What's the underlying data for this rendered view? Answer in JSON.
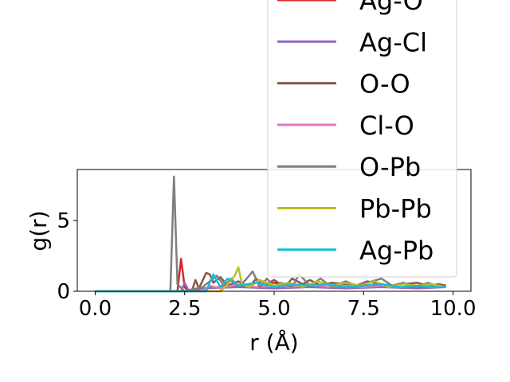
{
  "chart_data": {
    "type": "line",
    "xlabel": "r (Å)",
    "ylabel": "g(r)",
    "xlim": [
      -0.5,
      10.5
    ],
    "ylim": [
      0,
      8.6
    ],
    "xticks": [
      "0.0",
      "2.5",
      "5.0",
      "7.5",
      "10.0"
    ],
    "yticks": [
      "0",
      "5"
    ],
    "legend_position": "upper-right, extending above plot",
    "series": [
      {
        "name": "Ag-O",
        "color": "#d62728",
        "x": [
          0,
          2.3,
          2.4,
          2.5,
          2.6,
          3.0,
          3.5,
          4.0,
          4.5,
          5.0,
          5.5,
          6.0,
          6.5,
          7.0,
          7.5,
          8.0,
          8.5,
          9.0,
          9.5,
          9.8
        ],
        "y": [
          0,
          0,
          2.3,
          0.3,
          0.0,
          0.2,
          0.3,
          0.4,
          0.3,
          0.6,
          0.3,
          0.5,
          0.3,
          0.4,
          0.3,
          0.4,
          0.3,
          0.3,
          0.4,
          0.3
        ]
      },
      {
        "name": "Ag-Cl",
        "color": "#9467bd",
        "x": [
          0,
          2.4,
          2.5,
          2.6,
          3.0,
          4.0,
          5.0,
          6.0,
          7.0,
          8.0,
          9.0,
          9.8
        ],
        "y": [
          0,
          0,
          0.6,
          0.1,
          0.2,
          0.3,
          0.2,
          0.3,
          0.2,
          0.3,
          0.2,
          0.3
        ]
      },
      {
        "name": "O-O",
        "color": "#8c564b",
        "x": [
          0,
          2.7,
          2.8,
          2.9,
          3.1,
          3.2,
          3.3,
          3.5,
          3.7,
          4.0,
          4.3,
          4.5,
          4.7,
          5.0,
          5.3,
          5.5,
          5.8,
          6.0,
          6.3,
          6.6,
          7.0,
          7.3,
          7.6,
          8.0,
          8.3,
          8.6,
          9.0,
          9.3,
          9.6,
          9.8
        ],
        "y": [
          0,
          0,
          0.8,
          0.2,
          1.3,
          1.2,
          0.6,
          1.0,
          0.4,
          0.7,
          0.3,
          0.9,
          0.4,
          0.8,
          0.3,
          0.9,
          0.5,
          0.8,
          0.4,
          0.6,
          0.5,
          0.4,
          0.7,
          0.5,
          0.4,
          0.5,
          0.6,
          0.4,
          0.5,
          0.4
        ]
      },
      {
        "name": "Cl-O",
        "color": "#e377c2",
        "x": [
          0,
          3.0,
          3.2,
          3.5,
          4.0,
          4.5,
          5.0,
          5.5,
          6.0,
          6.5,
          7.0,
          7.5,
          8.0,
          8.5,
          9.0,
          9.5,
          9.8
        ],
        "y": [
          0,
          0,
          0.4,
          0.2,
          0.5,
          0.3,
          0.4,
          0.3,
          0.5,
          0.3,
          0.4,
          0.3,
          0.4,
          0.3,
          0.4,
          0.3,
          0.3
        ]
      },
      {
        "name": "O-Pb",
        "color": "#7f7f7f",
        "x": [
          0,
          2.1,
          2.2,
          2.3,
          2.5,
          3.0,
          3.4,
          3.6,
          3.8,
          4.0,
          4.2,
          4.4,
          4.6,
          4.8,
          5.0,
          5.2,
          5.5,
          5.7,
          6.0,
          6.3,
          6.6,
          7.0,
          7.3,
          7.6,
          8.0,
          8.3,
          8.6,
          9.0,
          9.3,
          9.6,
          9.8
        ],
        "y": [
          0,
          0,
          8.1,
          0.5,
          0.0,
          0.3,
          1.1,
          0.4,
          0.9,
          0.3,
          0.8,
          1.4,
          0.3,
          0.9,
          0.3,
          0.6,
          0.3,
          1.2,
          0.4,
          0.9,
          0.3,
          0.7,
          0.4,
          0.6,
          0.9,
          0.4,
          0.6,
          0.3,
          0.6,
          0.3,
          0.3
        ]
      },
      {
        "name": "Pb-Pb",
        "color": "#bcbd22",
        "x": [
          0,
          3.5,
          3.7,
          3.9,
          4.0,
          4.1,
          4.3,
          4.6,
          5.0,
          5.4,
          5.8,
          6.2,
          6.6,
          7.0,
          7.4,
          7.8,
          8.2,
          8.6,
          9.0,
          9.4,
          9.8
        ],
        "y": [
          0,
          0,
          0.5,
          1.1,
          1.7,
          0.5,
          0.3,
          0.8,
          0.4,
          0.6,
          0.3,
          0.7,
          0.4,
          0.6,
          0.4,
          0.7,
          0.3,
          0.5,
          0.4,
          0.5,
          0.3
        ]
      },
      {
        "name": "Ag-Pb",
        "color": "#17becf",
        "x": [
          0,
          3.1,
          3.3,
          3.5,
          3.7,
          4.0,
          4.5,
          5.0,
          5.5,
          6.0,
          6.5,
          7.0,
          7.5,
          8.0,
          8.5,
          9.0,
          9.5,
          9.8
        ],
        "y": [
          0,
          0,
          1.2,
          0.3,
          0.9,
          0.4,
          0.6,
          0.3,
          0.5,
          0.4,
          0.5,
          0.3,
          0.4,
          0.5,
          0.3,
          0.4,
          0.3,
          0.3
        ]
      }
    ]
  }
}
